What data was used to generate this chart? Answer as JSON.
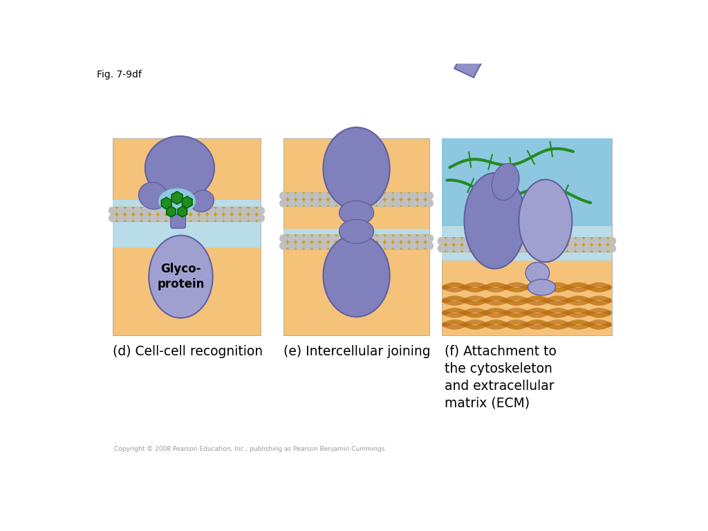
{
  "fig_label": "Fig. 7-9df",
  "caption_d": "(d) Cell-cell recognition",
  "caption_e": "(e) Intercellular joining",
  "caption_f": "(f) Attachment to\nthe cytoskeleton\nand extracellular\nmatrix (ECM)",
  "copyright": "Copyright © 2008 Pearson Education, Inc., publishing as Pearson Benjamin Cummings.",
  "bg_color": "#ffffff",
  "panel_outer": "#f5c27a",
  "membrane_interior": "#b8dce8",
  "cytoplasm_blue": "#8ec8e0",
  "protein_fill": "#8080bc",
  "protein_edge": "#6060a0",
  "protein_light": "#a0a0d0",
  "head_color": "#c0c0c0",
  "tail_color": "#c8a020",
  "green_dark": "#1a7a1a",
  "green_med": "#228B22",
  "ecm_fiber": "#c07818",
  "ecm_bg": "#f0c870"
}
